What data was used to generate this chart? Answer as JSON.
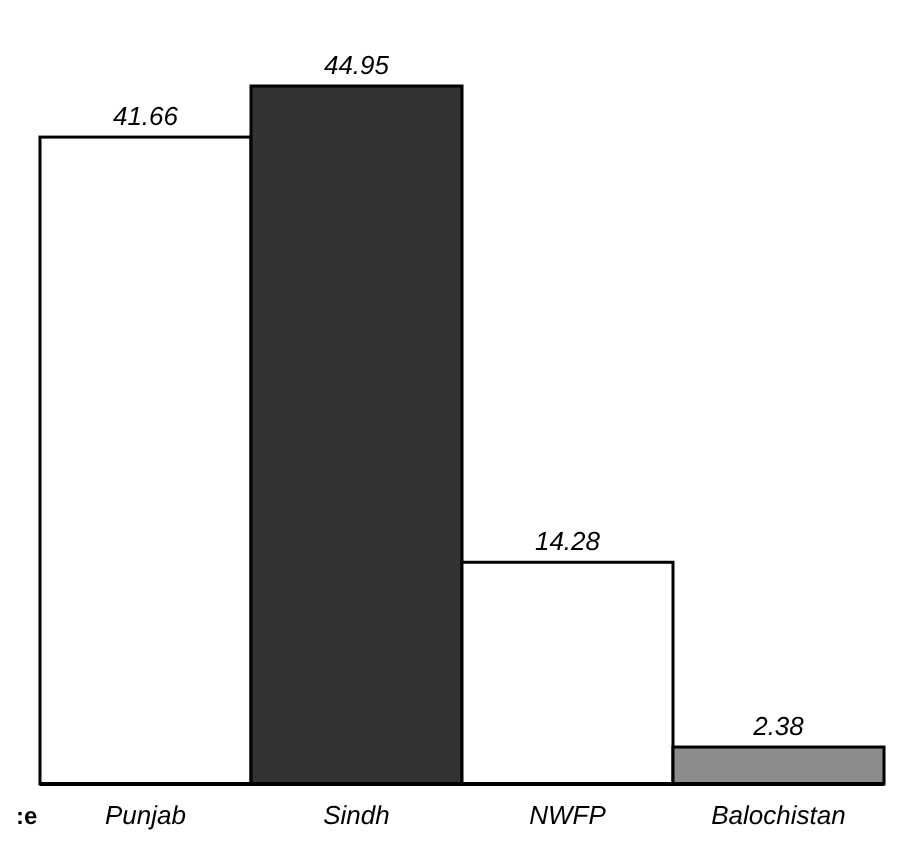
{
  "chart_data": {
    "type": "bar",
    "categories": [
      "Punjab",
      "Sindh",
      "NWFP",
      "Balochistan"
    ],
    "values": [
      41.66,
      44.95,
      14.28,
      2.38
    ],
    "colors": [
      "#ffffff",
      "#333333",
      "#ffffff",
      "#8c8c8c"
    ],
    "data_labels": true,
    "annotations": [
      ":e"
    ]
  }
}
